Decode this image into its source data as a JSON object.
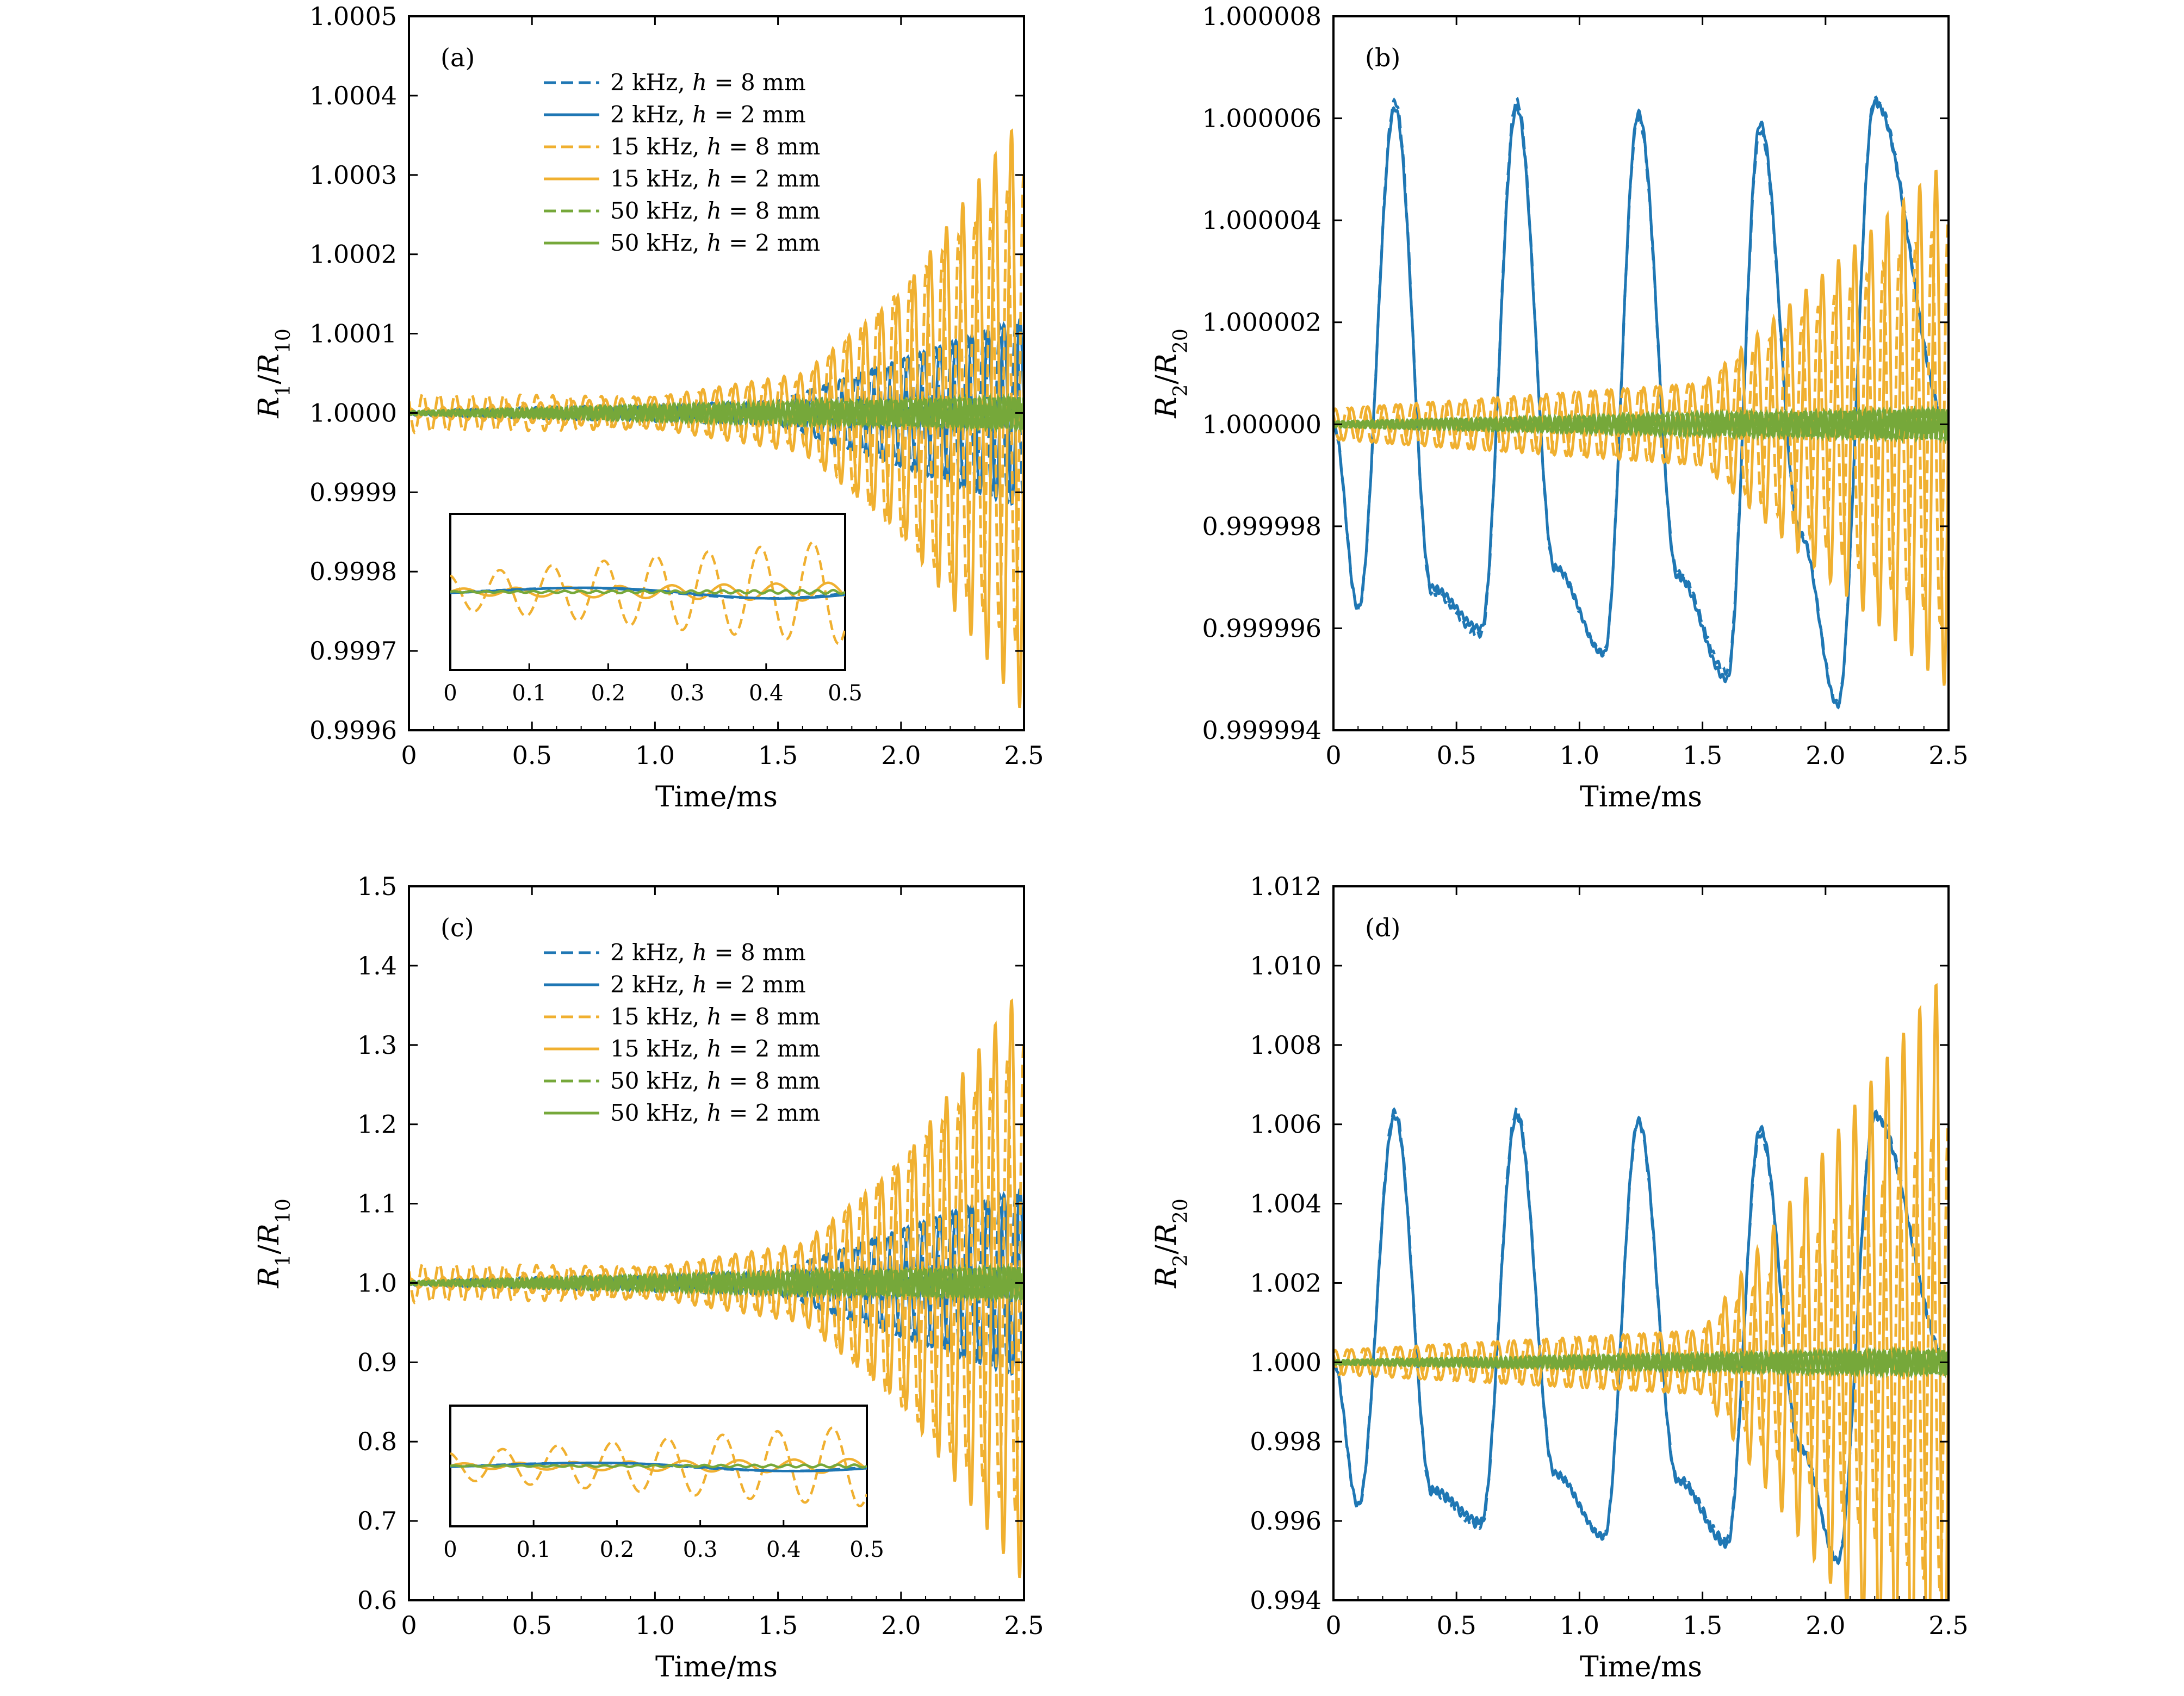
{
  "colors": {
    "blue": "#1f77b4",
    "orange": "#f0b030",
    "green": "#76a83a",
    "axis": "#000000"
  },
  "legend_entries": [
    {
      "freq": "2 kHz",
      "h": "8",
      "unit": "mm",
      "color": "#1f77b4",
      "style": "dashed"
    },
    {
      "freq": "2 kHz",
      "h": "2",
      "unit": "mm",
      "color": "#1f77b4",
      "style": "solid"
    },
    {
      "freq": "15 kHz",
      "h": "8",
      "unit": "mm",
      "color": "#f0b030",
      "style": "dashed"
    },
    {
      "freq": "15 kHz",
      "h": "2",
      "unit": "mm",
      "color": "#f0b030",
      "style": "solid"
    },
    {
      "freq": "50 kHz",
      "h": "8",
      "unit": "mm",
      "color": "#76a83a",
      "style": "dashed"
    },
    {
      "freq": "50 kHz",
      "h": "2",
      "unit": "mm",
      "color": "#76a83a",
      "style": "solid"
    }
  ],
  "chart_data": [
    {
      "panel": "(a)",
      "type": "line",
      "xlabel": "Time/ms",
      "ylabel": {
        "num": "R",
        "num_sub": "1",
        "den": "R",
        "den_sub": "10"
      },
      "xlim": [
        0,
        2.5
      ],
      "ylim": [
        0.9996,
        1.0005
      ],
      "xticks": [
        "0",
        "0.5",
        "1.0",
        "1.5",
        "2.0",
        "2.5"
      ],
      "yticks": [
        "0.9996",
        "0.9997",
        "0.9998",
        "0.9999",
        "1.0000",
        "1.0001",
        "1.0002",
        "1.0003",
        "1.0004",
        "1.0005"
      ],
      "legend": "upper-middle",
      "series": [
        {
          "name": "2 kHz, h = 8 mm",
          "color": "#1f77b4",
          "style": "dashed",
          "baseline": 1.0,
          "envelope": [
            [
              0,
              3e-06
            ],
            [
              1.5,
              1.5e-05
            ],
            [
              2.5,
              0.00012
            ]
          ],
          "period_ms": 0.065
        },
        {
          "name": "2 kHz, h = 2 mm",
          "color": "#1f77b4",
          "style": "solid",
          "baseline": 1.0,
          "envelope": [
            [
              0,
              3e-06
            ],
            [
              1.5,
              1.5e-05
            ],
            [
              2.5,
              0.00012
            ]
          ],
          "period_ms": 0.065
        },
        {
          "name": "15 kHz, h = 8 mm",
          "color": "#f0b030",
          "style": "dashed",
          "baseline": 1.0,
          "envelope": [
            [
              0,
              2.5e-05
            ],
            [
              1.0,
              2e-05
            ],
            [
              1.6,
              4e-05
            ],
            [
              2.5,
              0.0003
            ]
          ],
          "period_ms": 0.066
        },
        {
          "name": "15 kHz, h = 2 mm",
          "color": "#f0b030",
          "style": "solid",
          "baseline": 1.0,
          "envelope": [
            [
              0,
              5e-06
            ],
            [
              1.0,
              2e-05
            ],
            [
              1.6,
              5e-05
            ],
            [
              2.0,
              0.00015
            ],
            [
              2.5,
              0.00038
            ]
          ],
          "period_ms": 0.066
        },
        {
          "name": "50 kHz, h = 8 mm",
          "color": "#76a83a",
          "style": "dashed",
          "baseline": 1.0,
          "envelope": [
            [
              0,
              2e-06
            ],
            [
              2.5,
              2e-05
            ]
          ],
          "period_ms": 0.02
        },
        {
          "name": "50 kHz, h = 2 mm",
          "color": "#76a83a",
          "style": "solid",
          "baseline": 1.0,
          "envelope": [
            [
              0,
              2e-06
            ],
            [
              2.5,
              2e-05
            ]
          ],
          "period_ms": 0.02
        }
      ],
      "inset": {
        "xlim": [
          0,
          0.5
        ],
        "xticks": [
          "0",
          "0.1",
          "0.2",
          "0.3",
          "0.4",
          "0.5"
        ]
      }
    },
    {
      "panel": "(b)",
      "type": "line",
      "xlabel": "Time/ms",
      "ylabel": {
        "num": "R",
        "num_sub": "2",
        "den": "R",
        "den_sub": "20"
      },
      "xlim": [
        0,
        2.5
      ],
      "ylim": [
        0.999994,
        1.000008
      ],
      "xticks": [
        "0",
        "0.5",
        "1.0",
        "1.5",
        "2.0",
        "2.5"
      ],
      "yticks": [
        "0.999994",
        "0.999996",
        "0.999998",
        "1.000000",
        "1.000002",
        "1.000004",
        "1.000006",
        "1.000008"
      ],
      "series": [
        {
          "name": "2 kHz, h = 8 mm",
          "color": "#1f77b4",
          "style": "dashed",
          "baseline": 1.0,
          "peaks": [
            [
              0.25,
              1.0000062
            ],
            [
              0.745,
              1.0000062
            ],
            [
              1.24,
              1.0000061
            ],
            [
              1.735,
              1.0000059
            ],
            [
              2.2,
              1.0000063
            ]
          ],
          "troughs": [
            [
              0.1,
              0.9999964
            ],
            [
              0.4,
              0.9999968
            ],
            [
              0.6,
              0.999996
            ],
            [
              0.9,
              0.9999972
            ],
            [
              1.1,
              0.9999955
            ],
            [
              1.4,
              0.999997
            ],
            [
              1.6,
              0.999995
            ],
            [
              1.9,
              0.9999978
            ],
            [
              2.05,
              0.9999945
            ]
          ]
        },
        {
          "name": "2 kHz, h = 2 mm",
          "color": "#1f77b4",
          "style": "solid",
          "baseline": 1.0,
          "peaks": [
            [
              0.25,
              1.0000062
            ],
            [
              0.745,
              1.0000062
            ],
            [
              1.24,
              1.0000061
            ],
            [
              1.735,
              1.0000059
            ],
            [
              2.2,
              1.0000063
            ]
          ],
          "troughs": [
            [
              0.1,
              0.9999964
            ],
            [
              0.4,
              0.9999968
            ],
            [
              0.6,
              0.999996
            ],
            [
              0.9,
              0.9999972
            ],
            [
              1.1,
              0.9999955
            ],
            [
              1.4,
              0.999997
            ],
            [
              1.6,
              0.999995
            ],
            [
              1.9,
              0.9999978
            ],
            [
              2.05,
              0.9999945
            ]
          ]
        },
        {
          "name": "15 kHz, h = 8 mm",
          "color": "#f0b030",
          "style": "dashed",
          "baseline": 1.0,
          "envelope": [
            [
              0,
              3e-07
            ],
            [
              1.5,
              8e-07
            ],
            [
              2.5,
              4e-06
            ]
          ],
          "period_ms": 0.066
        },
        {
          "name": "15 kHz, h = 2 mm",
          "color": "#f0b030",
          "style": "solid",
          "baseline": 1.0,
          "envelope": [
            [
              0,
              3e-07
            ],
            [
              1.5,
              8e-07
            ],
            [
              2.5,
              5.2e-06
            ]
          ],
          "period_ms": 0.066
        },
        {
          "name": "50 kHz, h = 8 mm",
          "color": "#76a83a",
          "style": "dashed",
          "baseline": 1.0,
          "envelope": [
            [
              0,
              5e-08
            ],
            [
              2.5,
              3e-07
            ]
          ],
          "period_ms": 0.02
        },
        {
          "name": "50 kHz, h = 2 mm",
          "color": "#76a83a",
          "style": "solid",
          "baseline": 1.0,
          "envelope": [
            [
              0,
              5e-08
            ],
            [
              2.5,
              3e-07
            ]
          ],
          "period_ms": 0.02
        }
      ]
    },
    {
      "panel": "(c)",
      "type": "line",
      "xlabel": "Time/ms",
      "ylabel": {
        "num": "R",
        "num_sub": "1",
        "den": "R",
        "den_sub": "10"
      },
      "xlim": [
        0,
        2.5
      ],
      "ylim": [
        0.6,
        1.5
      ],
      "xticks": [
        "0",
        "0.5",
        "1.0",
        "1.5",
        "2.0",
        "2.5"
      ],
      "yticks": [
        "0.6",
        "0.7",
        "0.8",
        "0.9",
        "1.0",
        "1.1",
        "1.2",
        "1.3",
        "1.4",
        "1.5"
      ],
      "legend": "upper-middle",
      "series": [
        {
          "name": "2 kHz, h = 8 mm",
          "color": "#1f77b4",
          "style": "dashed",
          "baseline": 1.0,
          "envelope": [
            [
              0,
              0.003
            ],
            [
              1.5,
              0.015
            ],
            [
              2.5,
              0.12
            ]
          ],
          "period_ms": 0.065
        },
        {
          "name": "2 kHz, h = 2 mm",
          "color": "#1f77b4",
          "style": "solid",
          "baseline": 1.0,
          "envelope": [
            [
              0,
              0.003
            ],
            [
              1.5,
              0.015
            ],
            [
              2.5,
              0.12
            ]
          ],
          "period_ms": 0.065
        },
        {
          "name": "15 kHz, h = 8 mm",
          "color": "#f0b030",
          "style": "dashed",
          "baseline": 1.0,
          "envelope": [
            [
              0,
              0.025
            ],
            [
              1.0,
              0.02
            ],
            [
              1.6,
              0.04
            ],
            [
              2.5,
              0.3
            ]
          ],
          "period_ms": 0.066
        },
        {
          "name": "15 kHz, h = 2 mm",
          "color": "#f0b030",
          "style": "solid",
          "baseline": 1.0,
          "envelope": [
            [
              0,
              0.005
            ],
            [
              1.0,
              0.02
            ],
            [
              1.6,
              0.05
            ],
            [
              2.0,
              0.15
            ],
            [
              2.5,
              0.38
            ]
          ],
          "period_ms": 0.066
        },
        {
          "name": "50 kHz, h = 8 mm",
          "color": "#76a83a",
          "style": "dashed",
          "baseline": 1.0,
          "envelope": [
            [
              0,
              0.002
            ],
            [
              2.5,
              0.02
            ]
          ],
          "period_ms": 0.02
        },
        {
          "name": "50 kHz, h = 2 mm",
          "color": "#76a83a",
          "style": "solid",
          "baseline": 1.0,
          "envelope": [
            [
              0,
              0.002
            ],
            [
              2.5,
              0.02
            ]
          ],
          "period_ms": 0.02
        }
      ],
      "inset": {
        "xlim": [
          0,
          0.5
        ],
        "xticks": [
          "0",
          "0.1",
          "0.2",
          "0.3",
          "0.4",
          "0.5"
        ]
      }
    },
    {
      "panel": "(d)",
      "type": "line",
      "xlabel": "Time/ms",
      "ylabel": {
        "num": "R",
        "num_sub": "2",
        "den": "R",
        "den_sub": "20"
      },
      "xlim": [
        0,
        2.5
      ],
      "ylim": [
        0.994,
        1.012
      ],
      "xticks": [
        "0",
        "0.5",
        "1.0",
        "1.5",
        "2.0",
        "2.5"
      ],
      "yticks": [
        "0.994",
        "0.996",
        "0.998",
        "1.000",
        "1.002",
        "1.004",
        "1.006",
        "1.008",
        "1.010",
        "1.012"
      ],
      "series": [
        {
          "name": "2 kHz, h = 8 mm",
          "color": "#1f77b4",
          "style": "dashed",
          "baseline": 1.0,
          "peaks": [
            [
              0.25,
              1.0062
            ],
            [
              0.745,
              1.0062
            ],
            [
              1.24,
              1.0061
            ],
            [
              1.735,
              1.0059
            ],
            [
              2.2,
              1.0062
            ]
          ],
          "troughs": [
            [
              0.1,
              0.9964
            ],
            [
              0.4,
              0.9968
            ],
            [
              0.6,
              0.996
            ],
            [
              0.9,
              0.9972
            ],
            [
              1.1,
              0.9956
            ],
            [
              1.4,
              0.997
            ],
            [
              1.6,
              0.9954
            ],
            [
              1.9,
              0.9978
            ],
            [
              2.05,
              0.995
            ]
          ]
        },
        {
          "name": "2 kHz, h = 2 mm",
          "color": "#1f77b4",
          "style": "solid",
          "baseline": 1.0,
          "peaks": [
            [
              0.25,
              1.0062
            ],
            [
              0.745,
              1.0062
            ],
            [
              1.24,
              1.0061
            ],
            [
              1.735,
              1.0059
            ],
            [
              2.2,
              1.0062
            ]
          ],
          "troughs": [
            [
              0.1,
              0.9964
            ],
            [
              0.4,
              0.9968
            ],
            [
              0.6,
              0.996
            ],
            [
              0.9,
              0.9972
            ],
            [
              1.1,
              0.9956
            ],
            [
              1.4,
              0.997
            ],
            [
              1.6,
              0.9954
            ],
            [
              1.9,
              0.9978
            ],
            [
              2.05,
              0.995
            ]
          ]
        },
        {
          "name": "15 kHz, h = 8 mm",
          "color": "#f0b030",
          "style": "dashed",
          "baseline": 1.0,
          "envelope": [
            [
              0,
              0.0003
            ],
            [
              1.5,
              0.0008
            ],
            [
              2.5,
              0.006
            ]
          ],
          "period_ms": 0.066
        },
        {
          "name": "15 kHz, h = 2 mm",
          "color": "#f0b030",
          "style": "solid",
          "baseline": 1.0,
          "envelope": [
            [
              0,
              0.0003
            ],
            [
              1.5,
              0.0008
            ],
            [
              2.5,
              0.01
            ]
          ],
          "period_ms": 0.066
        },
        {
          "name": "50 kHz, h = 8 mm",
          "color": "#76a83a",
          "style": "dashed",
          "baseline": 1.0,
          "envelope": [
            [
              0,
              5e-05
            ],
            [
              2.5,
              0.0003
            ]
          ],
          "period_ms": 0.02
        },
        {
          "name": "50 kHz, h = 2 mm",
          "color": "#76a83a",
          "style": "solid",
          "baseline": 1.0,
          "envelope": [
            [
              0,
              5e-05
            ],
            [
              2.5,
              0.0003
            ]
          ],
          "period_ms": 0.02
        }
      ]
    }
  ]
}
